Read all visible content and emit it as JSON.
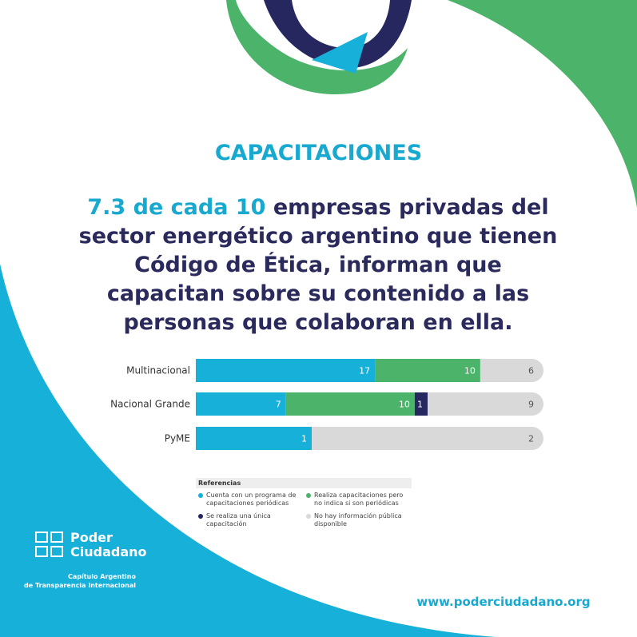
{
  "header": {
    "section": "CAPACITACIONES",
    "highlight": "7.3 de cada 10",
    "headline": "empresas privadas del sector energético argentino que tienen Código de Ética, informan que capacitan sobre su contenido a las personas que colaboran en ella."
  },
  "chart_data": {
    "type": "bar",
    "stacked": true,
    "orientation": "horizontal",
    "legend_title": "Referencias",
    "categories": [
      "Multinacional",
      "Nacional Grande",
      "PyME"
    ],
    "series": [
      {
        "name": "Cuenta con un programa de capacitaciones periódicas",
        "color": "#17b0d8",
        "values": [
          17,
          7,
          1
        ]
      },
      {
        "name": "Realiza capacitaciones pero no indica si son periódicas",
        "color": "#4cb46a",
        "values": [
          10,
          10,
          null
        ]
      },
      {
        "name": "Se realiza una única capacitación",
        "color": "#26275e",
        "values": [
          null,
          1,
          null
        ]
      },
      {
        "name": "No hay información pública disponible",
        "color": "#d9d9d9",
        "values": [
          6,
          9,
          2
        ]
      }
    ]
  },
  "footer": {
    "org": "Poder Ciudadano",
    "chapter": [
      "Capítulo Argentino",
      "de Transparencia Internacional"
    ],
    "url": "www.poderciudadano.org"
  }
}
